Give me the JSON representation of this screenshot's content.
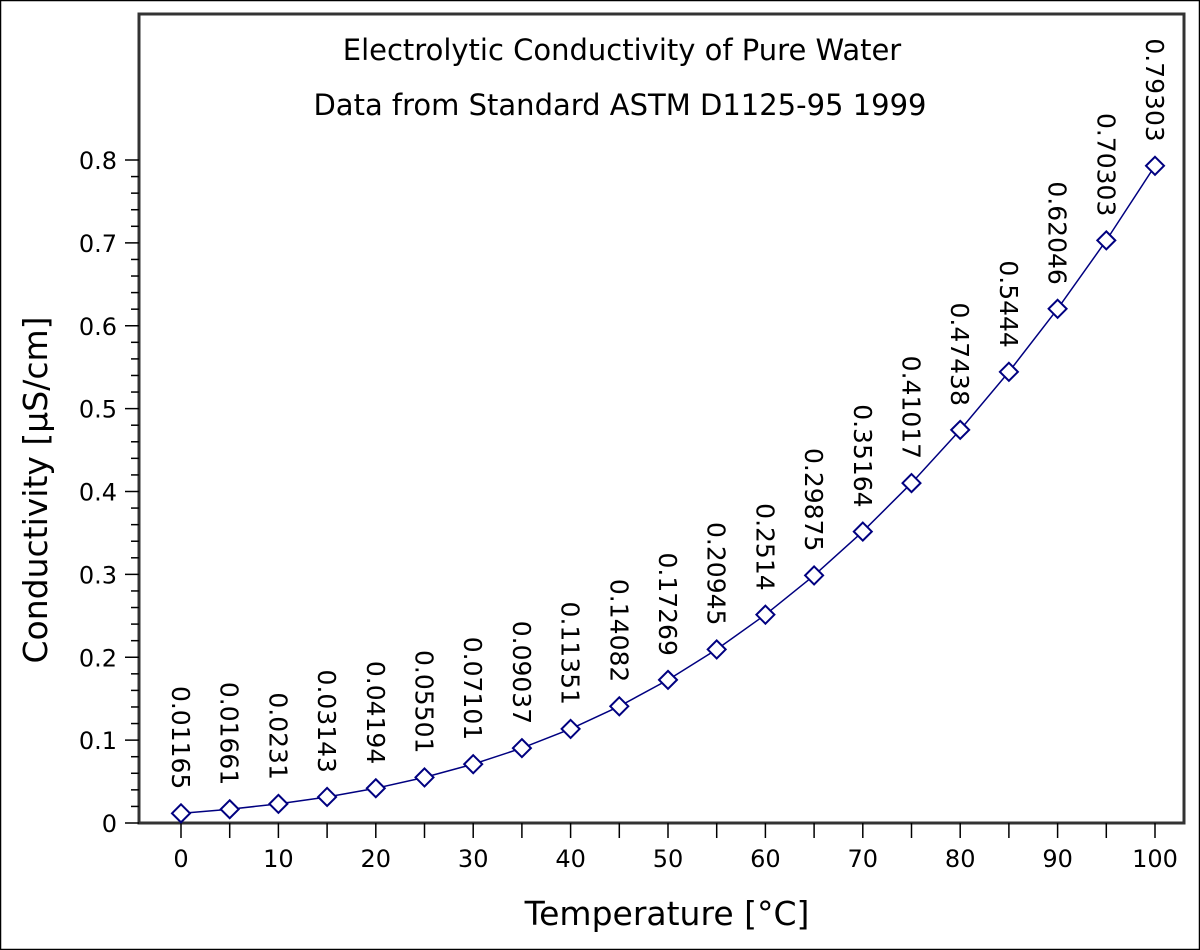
{
  "chart_data": {
    "type": "line",
    "title": "Electrolytic Conductivity of Pure Water",
    "subtitle": "Data from Standard ASTM D1125-95 1999",
    "xlabel": "Temperature [°C]",
    "ylabel": "Conductivity [µS/cm]",
    "xlim": [
      -4.3,
      103
    ],
    "ylim": [
      0,
      0.8
    ],
    "x_ticks": [
      0,
      10,
      20,
      30,
      40,
      50,
      60,
      70,
      80,
      90,
      100
    ],
    "x_tick_labels": [
      "0",
      "10",
      "20",
      "30",
      "40",
      "50",
      "60",
      "70",
      "80",
      "90",
      "100"
    ],
    "y_ticks": [
      0,
      0.1,
      0.2,
      0.3,
      0.4,
      0.5,
      0.6,
      0.7,
      0.8
    ],
    "y_tick_labels": [
      "0",
      "0.1",
      "0.2",
      "0.3",
      "0.4",
      "0.5",
      "0.6",
      "0.7",
      "0.8"
    ],
    "grid": false,
    "marker": "diamond-open",
    "series_color": "#000080",
    "x": [
      0,
      5,
      10,
      15,
      20,
      25,
      30,
      35,
      40,
      45,
      50,
      55,
      60,
      65,
      70,
      75,
      80,
      85,
      90,
      95,
      100
    ],
    "y": [
      0.01165,
      0.01661,
      0.0231,
      0.03143,
      0.04194,
      0.05501,
      0.07101,
      0.09037,
      0.11351,
      0.14082,
      0.17269,
      0.20945,
      0.2514,
      0.29875,
      0.35164,
      0.41017,
      0.47438,
      0.5444,
      0.62046,
      0.70303,
      0.79303
    ],
    "data_labels": [
      "0.01165",
      "0.01661",
      "0.0231",
      "0.03143",
      "0.04194",
      "0.05501",
      "0.07101",
      "0.09037",
      "0.11351",
      "0.14082",
      "0.17269",
      "0.20945",
      "0.2514",
      "0.29875",
      "0.35164",
      "0.41017",
      "0.47438",
      "0.5444",
      "0.62046",
      "0.70303",
      "0.79303"
    ]
  }
}
